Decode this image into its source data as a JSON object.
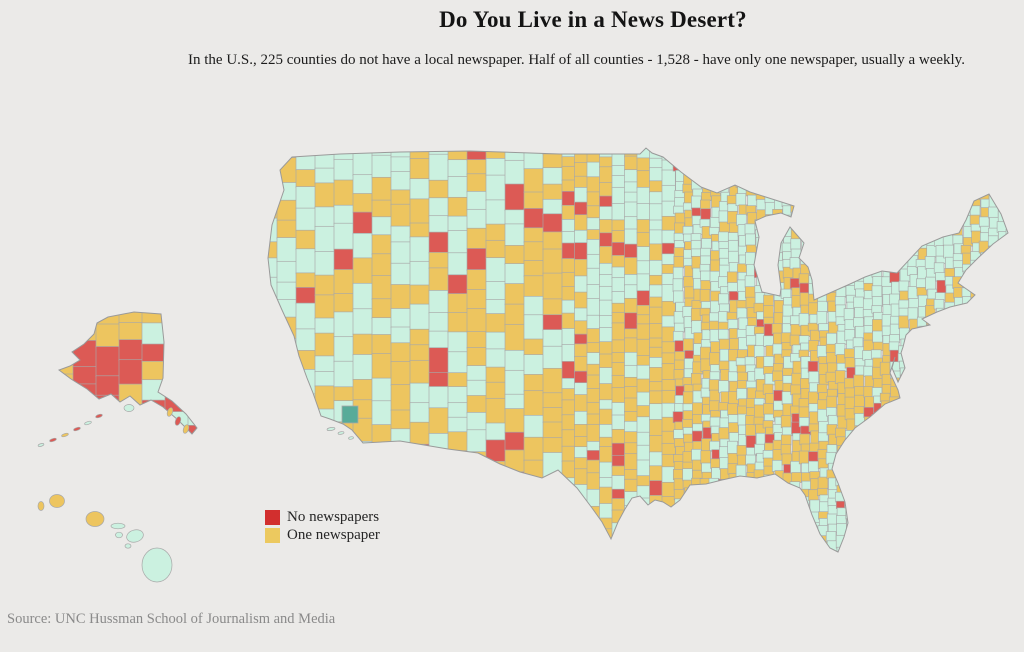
{
  "header": {
    "title": "Do You Live in a News Desert?",
    "subtitle": "In the U.S., 225 counties do not have a local newspaper. Half of all counties - 1,528 - have only one newspaper, usually a weekly."
  },
  "legend": {
    "items": [
      {
        "label": "No newspapers",
        "color": "#d22f2e"
      },
      {
        "label": "One newspaper",
        "color": "#ecc95f"
      }
    ]
  },
  "footer": {
    "source": "Source: UNC Hussman School of Journalism and Media"
  },
  "map": {
    "background": "#ebeae8",
    "county_border": "#a8a8a8",
    "outline": "#9a9a9a",
    "palette": {
      "no_newspapers": "#dc5a55",
      "one_newspaper": "#edc55f",
      "more_newspapers": "#cbf1e0",
      "highlight_county": "#58ab99"
    }
  },
  "chart_data": {
    "type": "choropleth_map",
    "title": "Do You Live in a News Desert?",
    "region": "United States counties (contiguous U.S. with Alaska and Hawaii insets)",
    "categories": [
      {
        "label": "No newspapers",
        "counties": 225,
        "color": "#dc5a55"
      },
      {
        "label": "One newspaper",
        "counties": 1528,
        "color": "#edc55f"
      }
    ],
    "notes": "Half of all counties - 1,528 - have only one newspaper, usually a weekly.",
    "legend_position": "bottom-left",
    "source": "UNC Hussman School of Journalism and Media"
  }
}
